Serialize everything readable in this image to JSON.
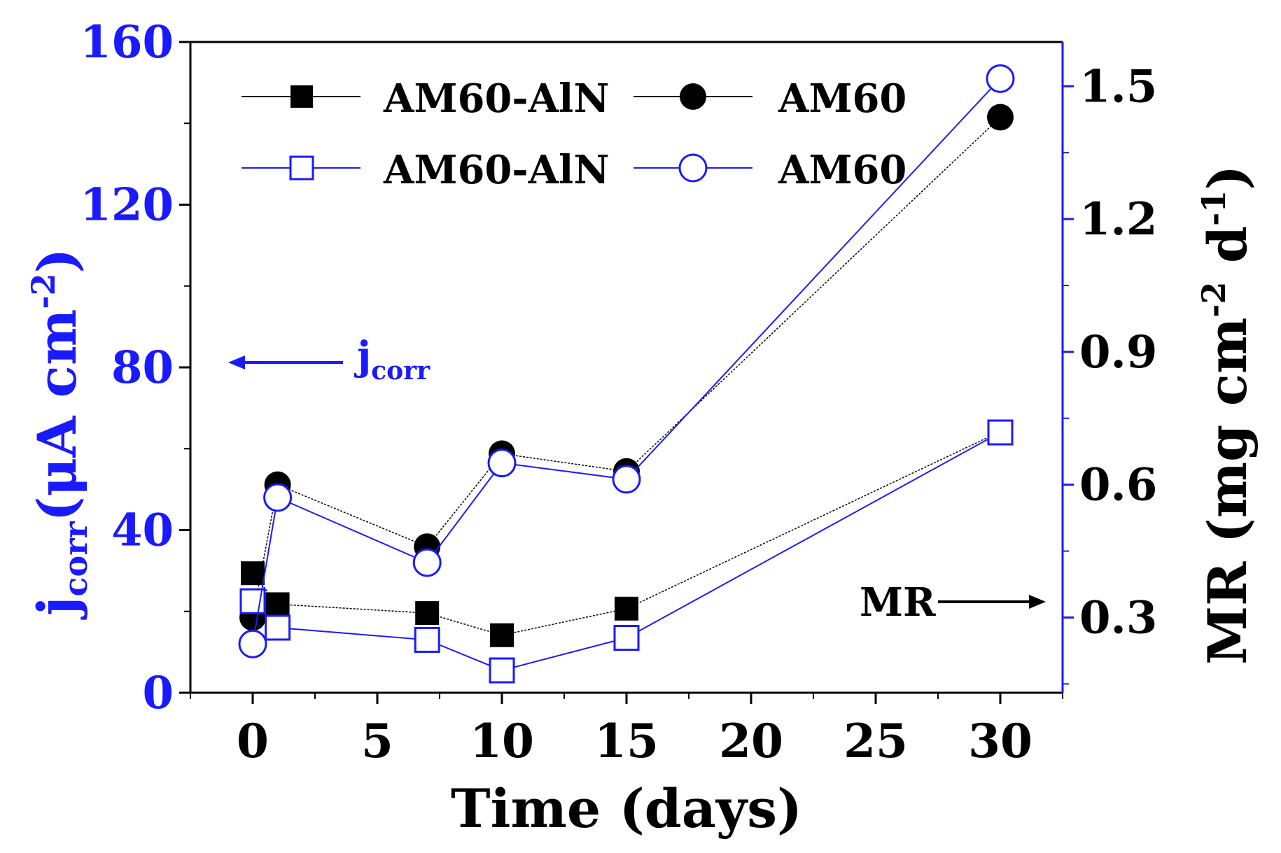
{
  "chart_data": {
    "type": "line",
    "x": [
      0,
      1,
      7,
      10,
      15,
      30
    ],
    "xlabel": "Time (days)",
    "xlim": [
      -2.5,
      32.5
    ],
    "xticks": [
      "0",
      "5",
      "10",
      "15",
      "20",
      "25",
      "30"
    ],
    "xtick_values": [
      0,
      5,
      10,
      15,
      20,
      25,
      30
    ],
    "left_axis": {
      "label_main": "j",
      "label_sub": "corr",
      "label_rest": "(μA cm",
      "label_sup": "-2",
      "label_close": ")",
      "ylim": [
        0,
        160
      ],
      "ticks": [
        "0",
        "40",
        "80",
        "120",
        "160"
      ],
      "tick_values": [
        0,
        40,
        80,
        120,
        160
      ],
      "color": "#1a1aff"
    },
    "right_axis": {
      "label_main": "MR (mg cm",
      "label_sup1": "-2",
      "label_mid": " d",
      "label_sup2": "-1",
      "label_close": ")",
      "ylim": [
        0.13,
        1.6
      ],
      "ticks": [
        "0.3",
        "0.6",
        "0.9",
        "1.2",
        "1.5"
      ],
      "tick_values": [
        0.3,
        0.6,
        0.9,
        1.2,
        1.5
      ],
      "color": "#000000"
    },
    "series": [
      {
        "name": "AM60-AlN",
        "axis": "right",
        "marker": "square",
        "filled": true,
        "color": "#000000",
        "x": [
          0,
          1,
          7,
          10,
          15,
          30
        ],
        "values": [
          0.4,
          0.33,
          0.31,
          0.26,
          0.32,
          0.72
        ]
      },
      {
        "name": "AM60",
        "axis": "right",
        "marker": "circle",
        "filled": true,
        "color": "#000000",
        "x": [
          0,
          1,
          7,
          10,
          15,
          30
        ],
        "values": [
          0.3,
          0.6,
          0.46,
          0.67,
          0.63,
          1.43
        ]
      },
      {
        "name": "AM60-AlN",
        "axis": "left",
        "marker": "square",
        "filled": false,
        "color": "#1a1aff",
        "x": [
          0,
          1,
          7,
          10,
          15,
          30
        ],
        "values": [
          22.5,
          16,
          13,
          5.5,
          13.5,
          64
        ]
      },
      {
        "name": "AM60",
        "axis": "left",
        "marker": "circle",
        "filled": false,
        "color": "#1a1aff",
        "x": [
          0,
          1,
          7,
          10,
          15,
          30
        ],
        "values": [
          12,
          48,
          32,
          56.5,
          52.5,
          151
        ]
      }
    ],
    "legend_position": "top-left",
    "annotations": [
      {
        "text": "j",
        "sub": "corr",
        "arrow": "left",
        "color": "#1a1aff"
      },
      {
        "text": "MR",
        "arrow": "right",
        "color": "#000000"
      }
    ]
  }
}
